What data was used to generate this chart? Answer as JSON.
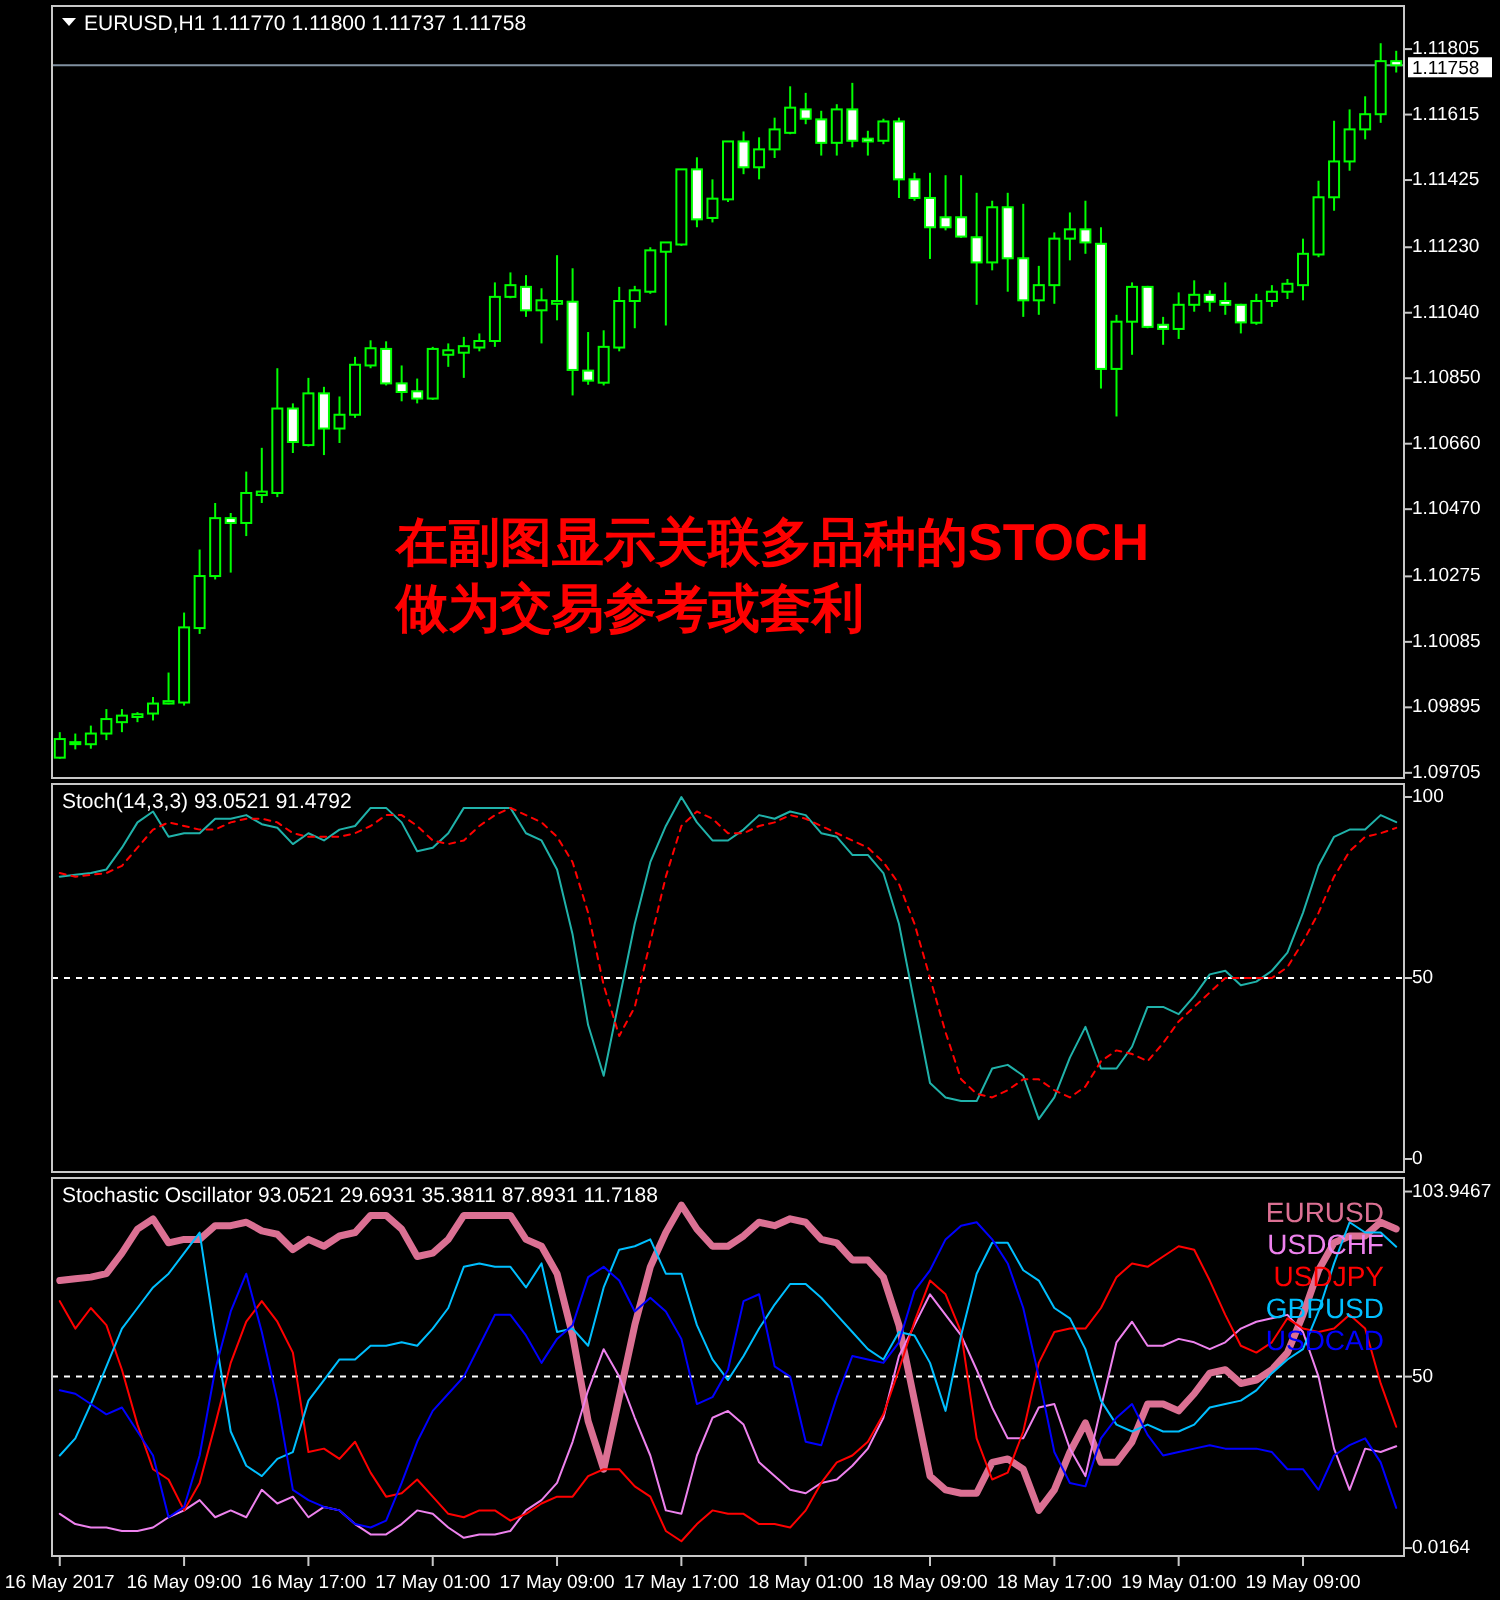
{
  "chart_data": [
    {
      "type": "candlestick",
      "title": "EURUSD,H1  1.11770 1.11800 1.11737 1.11758",
      "tick_labels": "y",
      "annotations": [
        "在副图显示关联多品种的STOCH",
        "做为交易参考或套利"
      ],
      "categories": [
        null,
        null,
        null,
        null,
        null,
        null,
        null,
        null,
        null,
        null,
        null,
        null,
        null,
        null,
        null,
        null,
        null,
        null,
        null,
        null,
        null,
        null,
        null,
        null,
        null,
        null,
        null,
        null,
        null,
        null,
        null,
        null,
        null,
        null,
        null,
        null,
        null,
        null,
        null,
        null,
        null,
        null,
        null,
        null,
        null,
        null,
        null,
        null,
        null,
        null,
        null,
        null,
        null,
        null,
        null,
        null,
        null,
        null,
        null,
        null,
        null,
        null,
        null,
        null,
        null,
        null,
        null,
        null,
        null,
        null,
        null,
        null,
        null,
        null,
        null,
        null,
        null,
        null,
        null,
        null,
        null,
        null,
        null,
        null,
        null,
        null,
        null
      ],
      "color": "#00ff00",
      "ohlc": [
        [
          1.09749,
          1.09823,
          1.09746,
          1.09803
        ],
        [
          1.0979,
          1.09819,
          1.09773,
          1.09794
        ],
        [
          1.09788,
          1.09842,
          1.09775,
          1.09819
        ],
        [
          1.09819,
          1.0989,
          1.098,
          1.09861
        ],
        [
          1.09852,
          1.0989,
          1.09823,
          1.09871
        ],
        [
          1.09867,
          1.09881,
          1.09852,
          1.09875
        ],
        [
          1.09877,
          1.09925,
          1.09857,
          1.09906
        ],
        [
          1.09906,
          1.09996,
          1.09904,
          1.09913
        ],
        [
          1.09909,
          1.1017,
          1.099,
          1.10127
        ],
        [
          1.10125,
          1.10353,
          1.10108,
          1.10276
        ],
        [
          1.10276,
          1.10488,
          1.10266,
          1.10444
        ],
        [
          1.10444,
          1.10459,
          1.10286,
          1.1043
        ],
        [
          1.1043,
          1.10579,
          1.10392,
          1.10517
        ],
        [
          1.10511,
          1.10648,
          1.10488,
          1.10521
        ],
        [
          1.10517,
          1.10879,
          1.10505,
          1.10762
        ],
        [
          1.10762,
          1.10777,
          1.10633,
          1.10665
        ],
        [
          1.10656,
          1.10851,
          1.10652,
          1.10806
        ],
        [
          1.10806,
          1.10825,
          1.10627,
          1.10704
        ],
        [
          1.10704,
          1.10797,
          1.10662,
          1.10744
        ],
        [
          1.10744,
          1.10912,
          1.10735,
          1.10889
        ],
        [
          1.10887,
          1.1096,
          1.10879,
          1.10937
        ],
        [
          1.10935,
          1.10957,
          1.10829,
          1.10835
        ],
        [
          1.10835,
          1.10887,
          1.10783,
          1.1081
        ],
        [
          1.10812,
          1.10849,
          1.10777,
          1.10791
        ],
        [
          1.10791,
          1.10941,
          1.10787,
          1.10935
        ],
        [
          1.10918,
          1.10951,
          1.10883,
          1.10931
        ],
        [
          1.10924,
          1.1097,
          1.10851,
          1.10943
        ],
        [
          1.10939,
          1.1098,
          1.10928,
          1.10958
        ],
        [
          1.10958,
          1.11128,
          1.10941,
          1.11086
        ],
        [
          1.11086,
          1.11157,
          1.11082,
          1.1112
        ],
        [
          1.11115,
          1.11149,
          1.11028,
          1.11047
        ],
        [
          1.11047,
          1.11111,
          1.10951,
          1.11076
        ],
        [
          1.11066,
          1.11207,
          1.11018,
          1.11074
        ],
        [
          1.11072,
          1.11169,
          1.108,
          1.10874
        ],
        [
          1.10872,
          1.10984,
          1.10831,
          1.10843
        ],
        [
          1.10837,
          1.10989,
          1.10829,
          1.10941
        ],
        [
          1.10939,
          1.11115,
          1.10928,
          1.11074
        ],
        [
          1.11074,
          1.11118,
          1.10995,
          1.11105
        ],
        [
          1.11101,
          1.1123,
          1.11095,
          1.11221
        ],
        [
          1.11217,
          1.11244,
          1.11003,
          1.11244
        ],
        [
          1.11238,
          1.11456,
          1.11234,
          1.11456
        ],
        [
          1.11456,
          1.11491,
          1.11288,
          1.11311
        ],
        [
          1.11315,
          1.11427,
          1.11302,
          1.11371
        ],
        [
          1.11369,
          1.11537,
          1.11361,
          1.11537
        ],
        [
          1.11537,
          1.11566,
          1.11442,
          1.11462
        ],
        [
          1.11462,
          1.11549,
          1.11427,
          1.11514
        ],
        [
          1.11514,
          1.11606,
          1.11489,
          1.11572
        ],
        [
          1.11562,
          1.11697,
          1.11558,
          1.11635
        ],
        [
          1.1163,
          1.11678,
          1.11587,
          1.11603
        ],
        [
          1.11601,
          1.11626,
          1.11496,
          1.11533
        ],
        [
          1.11533,
          1.11645,
          1.11496,
          1.1163
        ],
        [
          1.1163,
          1.11707,
          1.1152,
          1.11539
        ],
        [
          1.11545,
          1.11568,
          1.11496,
          1.11537
        ],
        [
          1.11539,
          1.11603,
          1.11529,
          1.11595
        ],
        [
          1.11595,
          1.11606,
          1.11373,
          1.11427
        ],
        [
          1.11427,
          1.11446,
          1.11365,
          1.11373
        ],
        [
          1.11373,
          1.11446,
          1.11196,
          1.11288
        ],
        [
          1.11317,
          1.11439,
          1.11279,
          1.11288
        ],
        [
          1.11317,
          1.11439,
          1.11257,
          1.11261
        ],
        [
          1.11259,
          1.11388,
          1.11063,
          1.11186
        ],
        [
          1.11186,
          1.11365,
          1.11163,
          1.11346
        ],
        [
          1.11346,
          1.11388,
          1.11101,
          1.11198
        ],
        [
          1.11198,
          1.11356,
          1.11028,
          1.11076
        ],
        [
          1.11076,
          1.11176,
          1.11034,
          1.1112
        ],
        [
          1.1112,
          1.11273,
          1.11066,
          1.11255
        ],
        [
          1.11255,
          1.11331,
          1.11192,
          1.11282
        ],
        [
          1.11282,
          1.11365,
          1.11211,
          1.11244
        ],
        [
          1.1124,
          1.11288,
          1.1082,
          1.10877
        ],
        [
          1.10877,
          1.11034,
          1.10739,
          1.11014
        ],
        [
          1.11014,
          1.11128,
          1.10918,
          1.11115
        ],
        [
          1.11115,
          1.11118,
          1.10995,
          1.10999
        ],
        [
          1.11005,
          1.11028,
          1.10947,
          1.10993
        ],
        [
          1.10993,
          1.11099,
          1.10964,
          1.11063
        ],
        [
          1.11063,
          1.11134,
          1.11043,
          1.11092
        ],
        [
          1.11092,
          1.11105,
          1.11043,
          1.11072
        ],
        [
          1.11074,
          1.11128,
          1.11034,
          1.11063
        ],
        [
          1.11063,
          1.11066,
          1.1098,
          1.11012
        ],
        [
          1.11011,
          1.11095,
          1.11005,
          1.11074
        ],
        [
          1.11074,
          1.1112,
          1.11057,
          1.11101
        ],
        [
          1.11101,
          1.11138,
          1.1108,
          1.11124
        ],
        [
          1.1112,
          1.11255,
          1.11076,
          1.11211
        ],
        [
          1.11209,
          1.11423,
          1.11201,
          1.11375
        ],
        [
          1.11375,
          1.11597,
          1.11336,
          1.11479
        ],
        [
          1.11479,
          1.1163,
          1.11452,
          1.11572
        ],
        [
          1.11572,
          1.11668,
          1.11543,
          1.11616
        ],
        [
          1.11616,
          1.11822,
          1.11591,
          1.1177
        ],
        [
          1.1177,
          1.118,
          1.11737,
          1.11758
        ]
      ],
      "ylim": [
        1.0969,
        1.1193
      ],
      "yticks": [
        1.11805,
        1.11615,
        1.11425,
        {
          "value": 1.1123,
          "label": "1.11230"
        },
        {
          "value": 1.1104,
          "label": "1.11040"
        },
        {
          "value": 1.1085,
          "label": "1.10850"
        },
        {
          "value": 1.1066,
          "label": "1.10660"
        },
        {
          "value": 1.1047,
          "label": "1.10470"
        },
        1.10275,
        1.10085,
        1.09895,
        1.09705
      ],
      "ref_lines": [
        {
          "axis": "y",
          "value": 1.11758,
          "label": "1.11758",
          "color": "#8090a0"
        }
      ]
    },
    {
      "type": "line",
      "title": "Stoch(14,3,3) 93.0521 91.4792",
      "tick_labels": "y",
      "categories": [
        null,
        null,
        null,
        null,
        null,
        null,
        null,
        null,
        null,
        null,
        null,
        null,
        null,
        null,
        null,
        null,
        null,
        null,
        null,
        null,
        null,
        null,
        null,
        null,
        null,
        null,
        null,
        null,
        null,
        null,
        null,
        null,
        null,
        null,
        null,
        null,
        null,
        null,
        null,
        null,
        null,
        null,
        null,
        null,
        null,
        null,
        null,
        null,
        null,
        null,
        null,
        null,
        null,
        null,
        null,
        null,
        null,
        null,
        null,
        null,
        null,
        null,
        null,
        null,
        null,
        null,
        null,
        null,
        null,
        null,
        null,
        null,
        null,
        null,
        null,
        null,
        null,
        null,
        null,
        null,
        null,
        null,
        null,
        null,
        null,
        null,
        null
      ],
      "series": [
        {
          "color": "#20b2aa",
          "values": [
            78,
            78.5,
            79,
            80,
            86,
            93,
            96,
            89,
            90,
            90,
            94,
            94,
            95,
            92.5,
            91.5,
            87,
            90,
            88,
            91,
            92,
            97,
            97,
            93,
            85,
            86,
            90,
            97,
            97,
            97,
            97,
            90,
            88,
            80,
            62,
            37,
            23,
            44,
            65,
            82,
            92,
            100,
            93,
            88,
            88,
            91,
            95,
            94,
            96,
            95,
            90,
            89,
            84,
            84,
            79,
            65,
            43,
            21,
            17,
            16,
            16,
            25,
            26,
            23,
            11,
            17,
            28,
            36.5,
            25,
            25,
            31,
            42,
            42,
            40,
            45,
            51,
            52,
            48,
            49,
            52,
            57,
            68,
            81,
            89,
            91,
            91,
            95,
            93.05
          ]
        },
        {
          "color": "#ff0000",
          "line_style": "dashed",
          "values": [
            79,
            78,
            78.5,
            79,
            81,
            86,
            91,
            93,
            92,
            91,
            91,
            93,
            94,
            94,
            93,
            90,
            89,
            89,
            89,
            90,
            92,
            95,
            95,
            92,
            88,
            87,
            88,
            92,
            95,
            97,
            95,
            93,
            89,
            82,
            68,
            48,
            34,
            42,
            60,
            78,
            92,
            96,
            94,
            90,
            90,
            92,
            93,
            95,
            94,
            92,
            90,
            88,
            86,
            82,
            76,
            65,
            50,
            35,
            22,
            18,
            17,
            19,
            22,
            22,
            19,
            17,
            20,
            27,
            30,
            29,
            27,
            32,
            38,
            42,
            46,
            50,
            50,
            50,
            50,
            53,
            60,
            68,
            78,
            85,
            89,
            90,
            91.48
          ]
        }
      ],
      "ylim": [
        -3.6,
        103.6
      ],
      "yticks": [
        0,
        50,
        100
      ],
      "ref_lines": [
        {
          "axis": "y",
          "value": 50,
          "color": "#ffffff",
          "line_style": "dashed"
        }
      ]
    },
    {
      "type": "line",
      "title": "Stochastic Oscillator 93.0521 29.6931 35.3811 87.8931 11.7188",
      "legend": "top right",
      "categories": [
        "16 May 2017",
        null,
        null,
        null,
        null,
        null,
        null,
        null,
        "16 May 09:00",
        null,
        null,
        null,
        null,
        null,
        null,
        null,
        "16 May 17:00",
        null,
        null,
        null,
        null,
        null,
        null,
        null,
        "17 May 01:00",
        null,
        null,
        null,
        null,
        null,
        null,
        null,
        "17 May 09:00",
        null,
        null,
        null,
        null,
        null,
        null,
        null,
        "17 May 17:00",
        null,
        null,
        null,
        null,
        null,
        null,
        null,
        "18 May 01:00",
        null,
        null,
        null,
        null,
        null,
        null,
        null,
        "18 May 09:00",
        null,
        null,
        null,
        null,
        null,
        null,
        null,
        "18 May 17:00",
        null,
        null,
        null,
        null,
        null,
        null,
        null,
        "19 May 01:00",
        null,
        null,
        null,
        null,
        null,
        null,
        null,
        "19 May 09:00",
        null,
        null,
        null,
        null,
        null,
        null
      ],
      "series": [
        {
          "name": "EURUSD",
          "color": "#db7093",
          "values": [
            78,
            78.5,
            79,
            80,
            86,
            93,
            96,
            89,
            90,
            90,
            94,
            94,
            95,
            92.5,
            91.5,
            87,
            90,
            88,
            91,
            92,
            97,
            97,
            93,
            85,
            86,
            90,
            97,
            97,
            97,
            97,
            90,
            88,
            80,
            62,
            37,
            23,
            44,
            65,
            82,
            92,
            100,
            93,
            88,
            88,
            91,
            95,
            94,
            96,
            95,
            90,
            89,
            84,
            84,
            79,
            65,
            43,
            21,
            17,
            16,
            16,
            25,
            26,
            23,
            11,
            17,
            28,
            36.5,
            25,
            25,
            31,
            42,
            42,
            40,
            45,
            51,
            52,
            48,
            49,
            52,
            57,
            68,
            81,
            89,
            91,
            91,
            95,
            93.05
          ]
        },
        {
          "name": "USDCHF",
          "color": "#ee82ee",
          "values": [
            10,
            7,
            6,
            6,
            5,
            5,
            6,
            9,
            11,
            14,
            9,
            11,
            9,
            17,
            13,
            15,
            9,
            12,
            11,
            7,
            4,
            4,
            7,
            11,
            10,
            6,
            3,
            4,
            4,
            5,
            11,
            14,
            19,
            31,
            46,
            58,
            50,
            38,
            27,
            11,
            10,
            27,
            38,
            40,
            36,
            25,
            21,
            17,
            16,
            19,
            20,
            24,
            29,
            38,
            56,
            65,
            74,
            68,
            62,
            52,
            41,
            32,
            32,
            41,
            42,
            29,
            21,
            41,
            60,
            66,
            59,
            59,
            61,
            60,
            58,
            60,
            64,
            66,
            67,
            68,
            63,
            50,
            29,
            17,
            29,
            28,
            29.69
          ]
        },
        {
          "name": "USDJPY",
          "color": "#ff0000",
          "values": [
            72,
            64,
            70,
            65,
            52,
            36,
            23,
            20,
            11,
            19,
            36,
            54,
            66,
            72,
            66,
            57,
            28,
            29,
            26,
            31,
            22,
            15,
            16,
            20,
            15,
            10,
            9,
            11,
            11,
            8,
            10,
            13,
            15,
            15,
            21,
            23,
            23,
            18,
            15,
            5,
            2,
            7,
            11,
            10,
            10,
            7,
            7,
            6,
            11,
            19,
            25,
            27,
            31,
            39,
            52,
            66,
            78,
            74,
            63,
            32,
            20,
            22,
            34,
            54,
            63,
            64,
            64,
            70,
            79,
            83,
            82,
            85,
            88,
            87,
            78,
            68,
            59,
            57,
            60,
            67,
            64,
            63,
            64,
            68,
            64,
            48,
            35.38
          ]
        },
        {
          "name": "GBPUSD",
          "color": "#00bfff",
          "values": [
            27,
            32,
            42,
            53,
            64,
            70,
            76,
            80,
            86,
            92,
            62,
            34,
            24,
            21,
            26,
            28,
            43,
            49,
            55,
            55,
            59,
            59,
            60,
            59,
            64,
            70,
            82,
            83,
            82,
            82,
            76,
            83,
            63,
            64,
            59,
            76,
            87,
            88,
            90,
            80,
            80,
            65,
            55,
            49,
            56,
            64,
            71,
            77,
            77,
            73,
            68,
            63,
            58,
            55,
            63,
            62,
            54,
            40,
            62,
            80,
            89,
            89,
            81,
            78,
            70,
            67,
            58,
            43,
            36,
            34,
            36,
            34,
            34,
            36,
            41,
            42,
            43,
            46,
            51,
            55,
            58,
            69,
            83,
            95,
            92,
            92,
            87.89
          ]
        },
        {
          "name": "USDCAD",
          "color": "#0000ff",
          "values": [
            46,
            45,
            42,
            39,
            41,
            34,
            27,
            9,
            12,
            27,
            52,
            69,
            80,
            63,
            43,
            17,
            14,
            12,
            11,
            7,
            6,
            8,
            19,
            31,
            40,
            45,
            50,
            59,
            68,
            68,
            62,
            54,
            61,
            65,
            79,
            82,
            78,
            69,
            73,
            69,
            61,
            42,
            44,
            52,
            72,
            74,
            53,
            50,
            31,
            30,
            44,
            56,
            55,
            54,
            60,
            75,
            81,
            90,
            94,
            95,
            90,
            83,
            70,
            50,
            28,
            19,
            18,
            32,
            38,
            42,
            33,
            27,
            28,
            29,
            30,
            29,
            29,
            29,
            28,
            23,
            23,
            17,
            27,
            30,
            32,
            25,
            11.72
          ]
        }
      ],
      "ylim": [
        -2.3,
        107.9
      ],
      "yticks": [
        103.9467,
        50,
        0.0164
      ],
      "ref_lines": [
        {
          "axis": "y",
          "value": 50,
          "color": "#ffffff",
          "line_style": "dashed"
        }
      ]
    }
  ]
}
